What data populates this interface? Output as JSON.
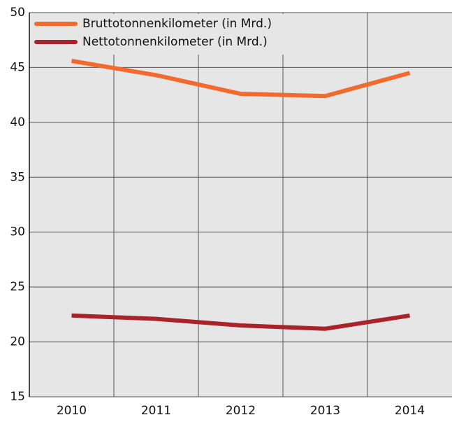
{
  "chart_data": {
    "type": "line",
    "categories": [
      "2010",
      "2011",
      "2012",
      "2013",
      "2014"
    ],
    "series": [
      {
        "name": "Bruttotonnenkilometer (in Mrd.)",
        "color": "#f26a2e",
        "values": [
          45.6,
          44.3,
          42.6,
          42.4,
          44.5
        ]
      },
      {
        "name": "Nettotonnenkilometer (in Mrd.)",
        "color": "#a8242a",
        "values": [
          22.4,
          22.1,
          21.5,
          21.2,
          22.4
        ]
      }
    ],
    "ylim": [
      15,
      50
    ],
    "yticks": [
      15,
      20,
      25,
      30,
      35,
      40,
      45,
      50
    ],
    "grid": true,
    "legend": "top-left"
  }
}
